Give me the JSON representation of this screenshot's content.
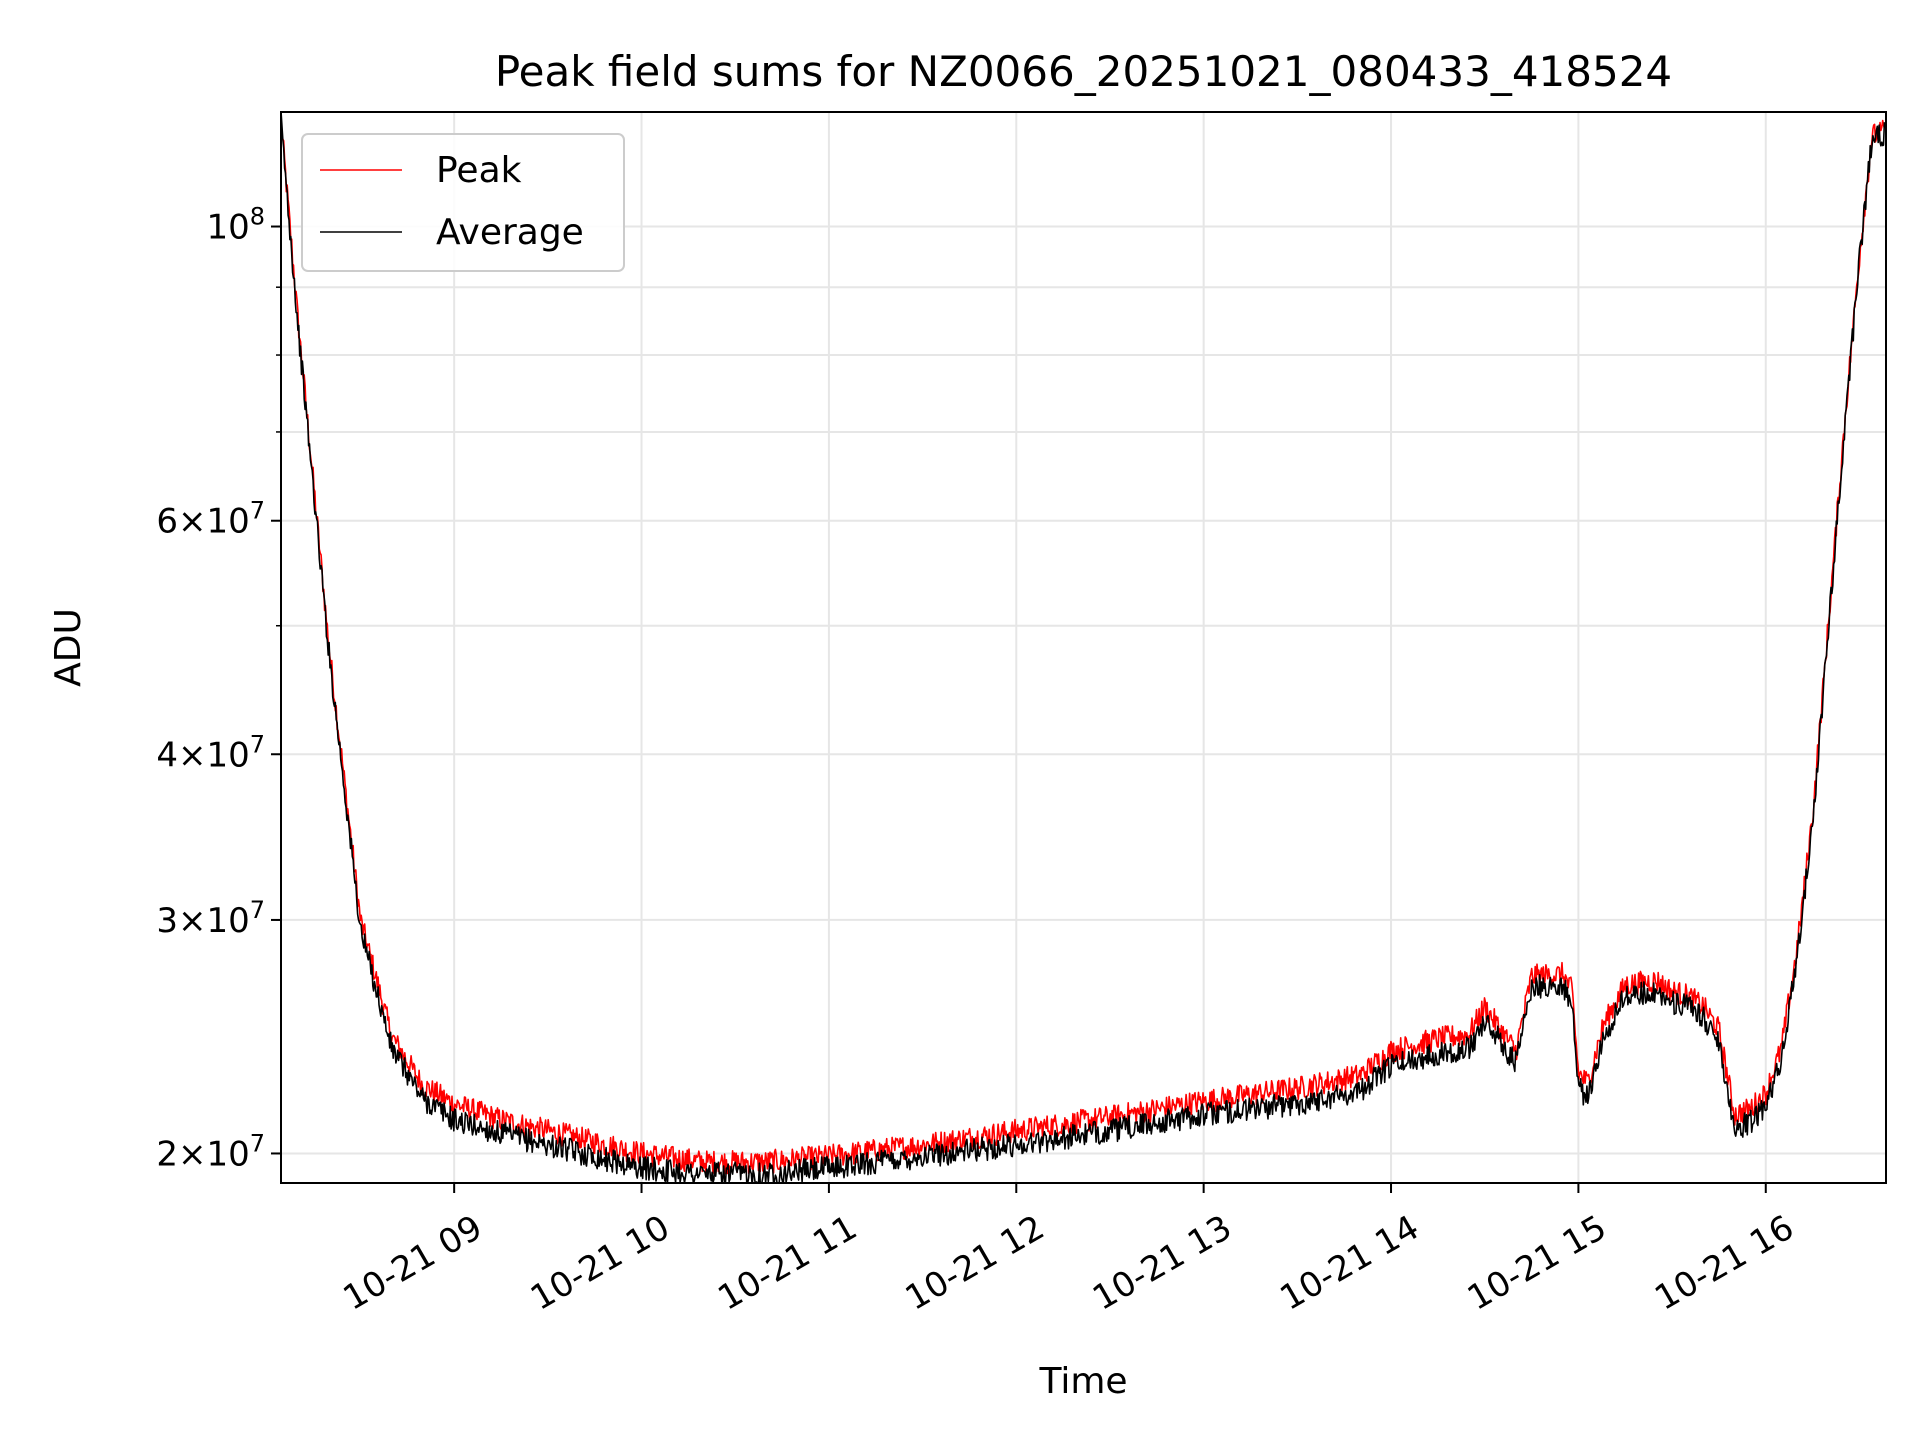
{
  "chart_data": {
    "type": "line",
    "title": "Peak field sums for NZ0066_20251021_080433_418524",
    "xlabel": "Time",
    "ylabel": "ADU",
    "y_scale": "log",
    "grid": true,
    "legend_position": "upper-left",
    "xlim": [
      "2025-10-21 08:04:33",
      "2025-10-21 16:38:30"
    ],
    "ylim": [
      19000000,
      122000000
    ],
    "x_ticks": [
      {
        "value": "2025-10-21 09:00",
        "label": "10-21 09"
      },
      {
        "value": "2025-10-21 10:00",
        "label": "10-21 10"
      },
      {
        "value": "2025-10-21 11:00",
        "label": "10-21 11"
      },
      {
        "value": "2025-10-21 12:00",
        "label": "10-21 12"
      },
      {
        "value": "2025-10-21 13:00",
        "label": "10-21 13"
      },
      {
        "value": "2025-10-21 14:00",
        "label": "10-21 14"
      },
      {
        "value": "2025-10-21 15:00",
        "label": "10-21 15"
      },
      {
        "value": "2025-10-21 16:00",
        "label": "10-21 16"
      }
    ],
    "y_ticks": [
      {
        "value": 20000000,
        "mant": "2",
        "exp": "7"
      },
      {
        "value": 30000000,
        "mant": "3",
        "exp": "7"
      },
      {
        "value": 40000000,
        "mant": "4",
        "exp": "7"
      },
      {
        "value": 60000000,
        "mant": "6",
        "exp": "7"
      },
      {
        "value": 100000000,
        "mant": "",
        "exp": "8"
      }
    ],
    "series": [
      {
        "name": "Peak",
        "color": "#ff0000",
        "x": [
          "2025-10-21 08:04:33",
          "2025-10-21 08:10",
          "2025-10-21 08:20",
          "2025-10-21 08:30",
          "2025-10-21 08:40",
          "2025-10-21 08:50",
          "2025-10-21 09:00",
          "2025-10-21 09:15",
          "2025-10-21 09:30",
          "2025-10-21 09:45",
          "2025-10-21 10:00",
          "2025-10-21 10:20",
          "2025-10-21 10:40",
          "2025-10-21 11:00",
          "2025-10-21 11:30",
          "2025-10-21 12:00",
          "2025-10-21 12:30",
          "2025-10-21 13:00",
          "2025-10-21 13:30",
          "2025-10-21 13:50",
          "2025-10-21 14:00",
          "2025-10-21 14:15",
          "2025-10-21 14:25",
          "2025-10-21 14:30",
          "2025-10-21 14:35",
          "2025-10-21 14:40",
          "2025-10-21 14:45",
          "2025-10-21 14:55",
          "2025-10-21 14:58",
          "2025-10-21 15:00",
          "2025-10-21 15:03",
          "2025-10-21 15:08",
          "2025-10-21 15:15",
          "2025-10-21 15:25",
          "2025-10-21 15:30",
          "2025-10-21 15:35",
          "2025-10-21 15:40",
          "2025-10-21 15:45",
          "2025-10-21 15:50",
          "2025-10-21 15:55",
          "2025-10-21 16:00",
          "2025-10-21 16:05",
          "2025-10-21 16:10",
          "2025-10-21 16:15",
          "2025-10-21 16:20",
          "2025-10-21 16:25",
          "2025-10-21 16:30",
          "2025-10-21 16:34",
          "2025-10-21 16:38"
        ],
        "y": [
          120000000,
          85000000,
          48000000,
          30000000,
          24500000,
          22500000,
          21800000,
          21200000,
          20800000,
          20400000,
          20000000,
          19700000,
          19700000,
          19900000,
          20300000,
          20800000,
          21300000,
          21900000,
          22400000,
          22900000,
          23900000,
          24400000,
          24600000,
          25800000,
          24800000,
          23900000,
          27200000,
          27300000,
          26500000,
          23000000,
          22600000,
          25000000,
          26800000,
          27000000,
          26500000,
          26300000,
          25800000,
          24800000,
          21400000,
          21600000,
          22200000,
          24000000,
          28500000,
          36000000,
          50000000,
          70000000,
          95000000,
          117000000,
          118000000
        ]
      },
      {
        "name": "Average",
        "color": "#000000",
        "x": [
          "2025-10-21 08:04:33",
          "2025-10-21 08:10",
          "2025-10-21 08:20",
          "2025-10-21 08:30",
          "2025-10-21 08:40",
          "2025-10-21 08:50",
          "2025-10-21 09:00",
          "2025-10-21 09:15",
          "2025-10-21 09:30",
          "2025-10-21 09:45",
          "2025-10-21 10:00",
          "2025-10-21 10:20",
          "2025-10-21 10:40",
          "2025-10-21 11:00",
          "2025-10-21 11:30",
          "2025-10-21 12:00",
          "2025-10-21 12:30",
          "2025-10-21 13:00",
          "2025-10-21 13:30",
          "2025-10-21 13:50",
          "2025-10-21 14:00",
          "2025-10-21 14:15",
          "2025-10-21 14:25",
          "2025-10-21 14:30",
          "2025-10-21 14:35",
          "2025-10-21 14:40",
          "2025-10-21 14:45",
          "2025-10-21 14:55",
          "2025-10-21 14:58",
          "2025-10-21 15:00",
          "2025-10-21 15:03",
          "2025-10-21 15:08",
          "2025-10-21 15:15",
          "2025-10-21 15:25",
          "2025-10-21 15:30",
          "2025-10-21 15:35",
          "2025-10-21 15:40",
          "2025-10-21 15:45",
          "2025-10-21 15:50",
          "2025-10-21 15:55",
          "2025-10-21 16:00",
          "2025-10-21 16:05",
          "2025-10-21 16:10",
          "2025-10-21 16:15",
          "2025-10-21 16:20",
          "2025-10-21 16:25",
          "2025-10-21 16:30",
          "2025-10-21 16:34",
          "2025-10-21 16:38"
        ],
        "y": [
          120000000,
          84000000,
          47500000,
          29500000,
          24000000,
          22000000,
          21200000,
          20700000,
          20300000,
          19900000,
          19500000,
          19300000,
          19300000,
          19500000,
          19900000,
          20300000,
          20800000,
          21400000,
          21800000,
          22300000,
          23300000,
          23800000,
          24000000,
          25200000,
          24300000,
          23400000,
          26700000,
          26800000,
          25900000,
          22400000,
          22000000,
          24500000,
          26300000,
          26500000,
          26000000,
          25800000,
          25300000,
          24300000,
          20900000,
          21100000,
          21700000,
          23500000,
          28000000,
          35500000,
          49500000,
          69500000,
          94500000,
          116500000,
          117500000
        ]
      }
    ]
  }
}
